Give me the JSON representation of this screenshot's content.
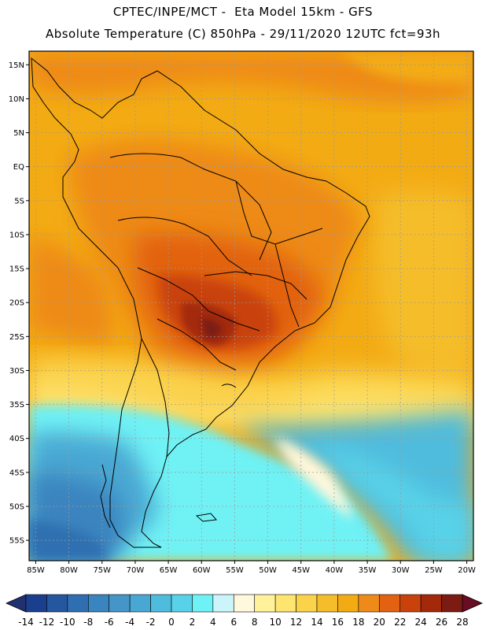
{
  "header": {
    "title": "CPTEC/INPE/MCT -  Eta Model 15km - GFS",
    "subtitle": "Absolute Temperature (C) 850hPa - 29/11/2020 12UTC fct=93h"
  },
  "map": {
    "lon_labels": [
      "85W",
      "80W",
      "75W",
      "70W",
      "65W",
      "60W",
      "55W",
      "50W",
      "45W",
      "40W",
      "35W",
      "30W",
      "25W",
      "20W"
    ],
    "lat_labels": [
      "15N",
      "10N",
      "5N",
      "EQ",
      "5S",
      "10S",
      "15S",
      "20S",
      "25S",
      "30S",
      "35S",
      "40S",
      "45S",
      "50S",
      "55S"
    ]
  },
  "colorbar": {
    "labels": [
      "-14",
      "-12",
      "-10",
      "-8",
      "-6",
      "-4",
      "-2",
      "0",
      "2",
      "4",
      "6",
      "8",
      "10",
      "12",
      "14",
      "16",
      "18",
      "20",
      "22",
      "24",
      "26",
      "28"
    ],
    "colors": [
      "#1b3f8f",
      "#24579f",
      "#2f6fb1",
      "#3a84bf",
      "#4496c8",
      "#49a8d3",
      "#4fbcdd",
      "#58d2e8",
      "#6ff2f5",
      "#ccf5fb",
      "#fff8dc",
      "#fff29a",
      "#fee56f",
      "#fbd34b",
      "#f5bd2a",
      "#f3ab14",
      "#ee8a19",
      "#e26211",
      "#c9420b",
      "#a3290a",
      "#7c1b12"
    ],
    "low_color": "#203070",
    "high_color": "#6a0c22"
  }
}
